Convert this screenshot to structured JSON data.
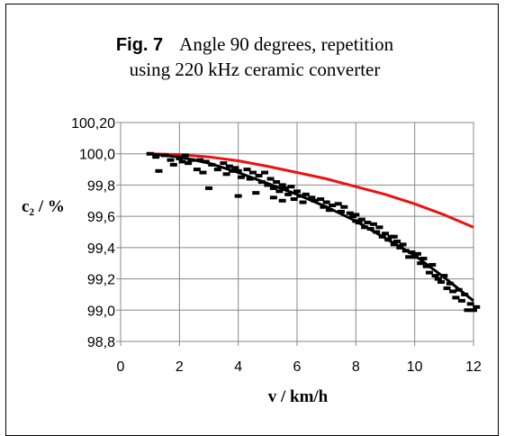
{
  "chart_data": {
    "type": "scatter",
    "title_fig": "Fig. 7",
    "title_line1": "Angle 90 degrees, repetition",
    "title_line2": "using 220 kHz ceramic converter",
    "xlabel": "v / km/h",
    "ylabel": "c₂ / %",
    "xlim": [
      0,
      12
    ],
    "ylim": [
      98.8,
      100.2
    ],
    "x_ticks": [
      "0",
      "2",
      "4",
      "6",
      "8",
      "10",
      "12"
    ],
    "y_ticks": [
      "98,8",
      "99,0",
      "99,2",
      "99,4",
      "99,6",
      "99,8",
      "100,0",
      "100,20"
    ],
    "grid": true,
    "series": [
      {
        "kind": "measured",
        "color": "#000000",
        "points": [
          [
            1.0,
            100.0
          ],
          [
            1.2,
            99.98
          ],
          [
            1.3,
            99.89
          ],
          [
            1.5,
            99.99
          ],
          [
            1.7,
            99.96
          ],
          [
            1.8,
            99.93
          ],
          [
            2.0,
            99.97
          ],
          [
            2.1,
            99.95
          ],
          [
            2.2,
            99.99
          ],
          [
            2.3,
            99.94
          ],
          [
            2.4,
            99.96
          ],
          [
            2.6,
            99.9
          ],
          [
            2.7,
            99.96
          ],
          [
            2.8,
            99.88
          ],
          [
            2.9,
            99.95
          ],
          [
            3.0,
            99.78
          ],
          [
            3.1,
            99.93
          ],
          [
            3.3,
            99.9
          ],
          [
            3.5,
            99.94
          ],
          [
            3.6,
            99.87
          ],
          [
            3.7,
            99.92
          ],
          [
            3.8,
            99.89
          ],
          [
            3.9,
            99.91
          ],
          [
            4.0,
            99.73
          ],
          [
            4.0,
            99.89
          ],
          [
            4.1,
            99.85
          ],
          [
            4.3,
            99.9
          ],
          [
            4.4,
            99.84
          ],
          [
            4.5,
            99.88
          ],
          [
            4.6,
            99.75
          ],
          [
            4.7,
            99.86
          ],
          [
            4.8,
            99.82
          ],
          [
            4.9,
            99.88
          ],
          [
            5.0,
            99.8
          ],
          [
            5.1,
            99.84
          ],
          [
            5.2,
            99.78
          ],
          [
            5.2,
            99.72
          ],
          [
            5.3,
            99.82
          ],
          [
            5.4,
            99.76
          ],
          [
            5.5,
            99.8
          ],
          [
            5.5,
            99.7
          ],
          [
            5.6,
            99.78
          ],
          [
            5.7,
            99.74
          ],
          [
            5.8,
            99.79
          ],
          [
            5.9,
            99.71
          ],
          [
            6.0,
            99.76
          ],
          [
            6.1,
            99.73
          ],
          [
            6.2,
            99.69
          ],
          [
            6.3,
            99.74
          ],
          [
            6.5,
            99.72
          ],
          [
            6.6,
            99.7
          ],
          [
            6.8,
            99.71
          ],
          [
            6.9,
            99.66
          ],
          [
            7.0,
            99.69
          ],
          [
            7.1,
            99.64
          ],
          [
            7.2,
            99.67
          ],
          [
            7.4,
            99.68
          ],
          [
            7.5,
            99.63
          ],
          [
            7.6,
            99.66
          ],
          [
            7.8,
            99.62
          ],
          [
            7.9,
            99.6
          ],
          [
            8.0,
            99.61
          ],
          [
            8.0,
            99.57
          ],
          [
            8.1,
            99.56
          ],
          [
            8.2,
            99.58
          ],
          [
            8.3,
            99.53
          ],
          [
            8.4,
            99.56
          ],
          [
            8.5,
            99.52
          ],
          [
            8.6,
            99.55
          ],
          [
            8.7,
            99.5
          ],
          [
            8.8,
            99.53
          ],
          [
            8.9,
            99.47
          ],
          [
            9.0,
            99.49
          ],
          [
            9.1,
            99.45
          ],
          [
            9.2,
            99.47
          ],
          [
            9.3,
            99.42
          ],
          [
            9.3,
            99.47
          ],
          [
            9.4,
            99.44
          ],
          [
            9.5,
            99.4
          ],
          [
            9.6,
            99.42
          ],
          [
            9.7,
            99.38
          ],
          [
            9.8,
            99.34
          ],
          [
            9.9,
            99.37
          ],
          [
            10.0,
            99.34
          ],
          [
            10.1,
            99.36
          ],
          [
            10.2,
            99.3
          ],
          [
            10.3,
            99.33
          ],
          [
            10.4,
            99.28
          ],
          [
            10.5,
            99.24
          ],
          [
            10.6,
            99.29
          ],
          [
            10.7,
            99.22
          ],
          [
            10.8,
            99.2
          ],
          [
            10.9,
            99.18
          ],
          [
            11.0,
            99.22
          ],
          [
            11.1,
            99.14
          ],
          [
            11.2,
            99.17
          ],
          [
            11.3,
            99.12
          ],
          [
            11.4,
            99.08
          ],
          [
            11.5,
            99.13
          ],
          [
            11.6,
            99.06
          ],
          [
            11.7,
            99.1
          ],
          [
            11.8,
            99.0
          ],
          [
            11.9,
            99.04
          ],
          [
            12.0,
            99.0
          ],
          [
            12.1,
            99.02
          ]
        ]
      },
      {
        "kind": "fit",
        "color": "#000000",
        "points": [
          [
            1.0,
            100.0
          ],
          [
            2.0,
            99.98
          ],
          [
            3.0,
            99.94
          ],
          [
            4.0,
            99.88
          ],
          [
            5.0,
            99.81
          ],
          [
            6.0,
            99.74
          ],
          [
            7.0,
            99.66
          ],
          [
            8.0,
            99.57
          ],
          [
            9.0,
            99.46
          ],
          [
            10.0,
            99.35
          ],
          [
            11.0,
            99.21
          ],
          [
            12.0,
            99.06
          ]
        ]
      },
      {
        "kind": "reference",
        "color": "#ee1111",
        "points": [
          [
            1.0,
            100.0
          ],
          [
            2.0,
            99.995
          ],
          [
            3.0,
            99.98
          ],
          [
            4.0,
            99.955
          ],
          [
            5.0,
            99.92
          ],
          [
            6.0,
            99.88
          ],
          [
            7.0,
            99.84
          ],
          [
            8.0,
            99.79
          ],
          [
            9.0,
            99.74
          ],
          [
            10.0,
            99.68
          ],
          [
            11.0,
            99.61
          ],
          [
            12.0,
            99.53
          ]
        ]
      }
    ]
  }
}
